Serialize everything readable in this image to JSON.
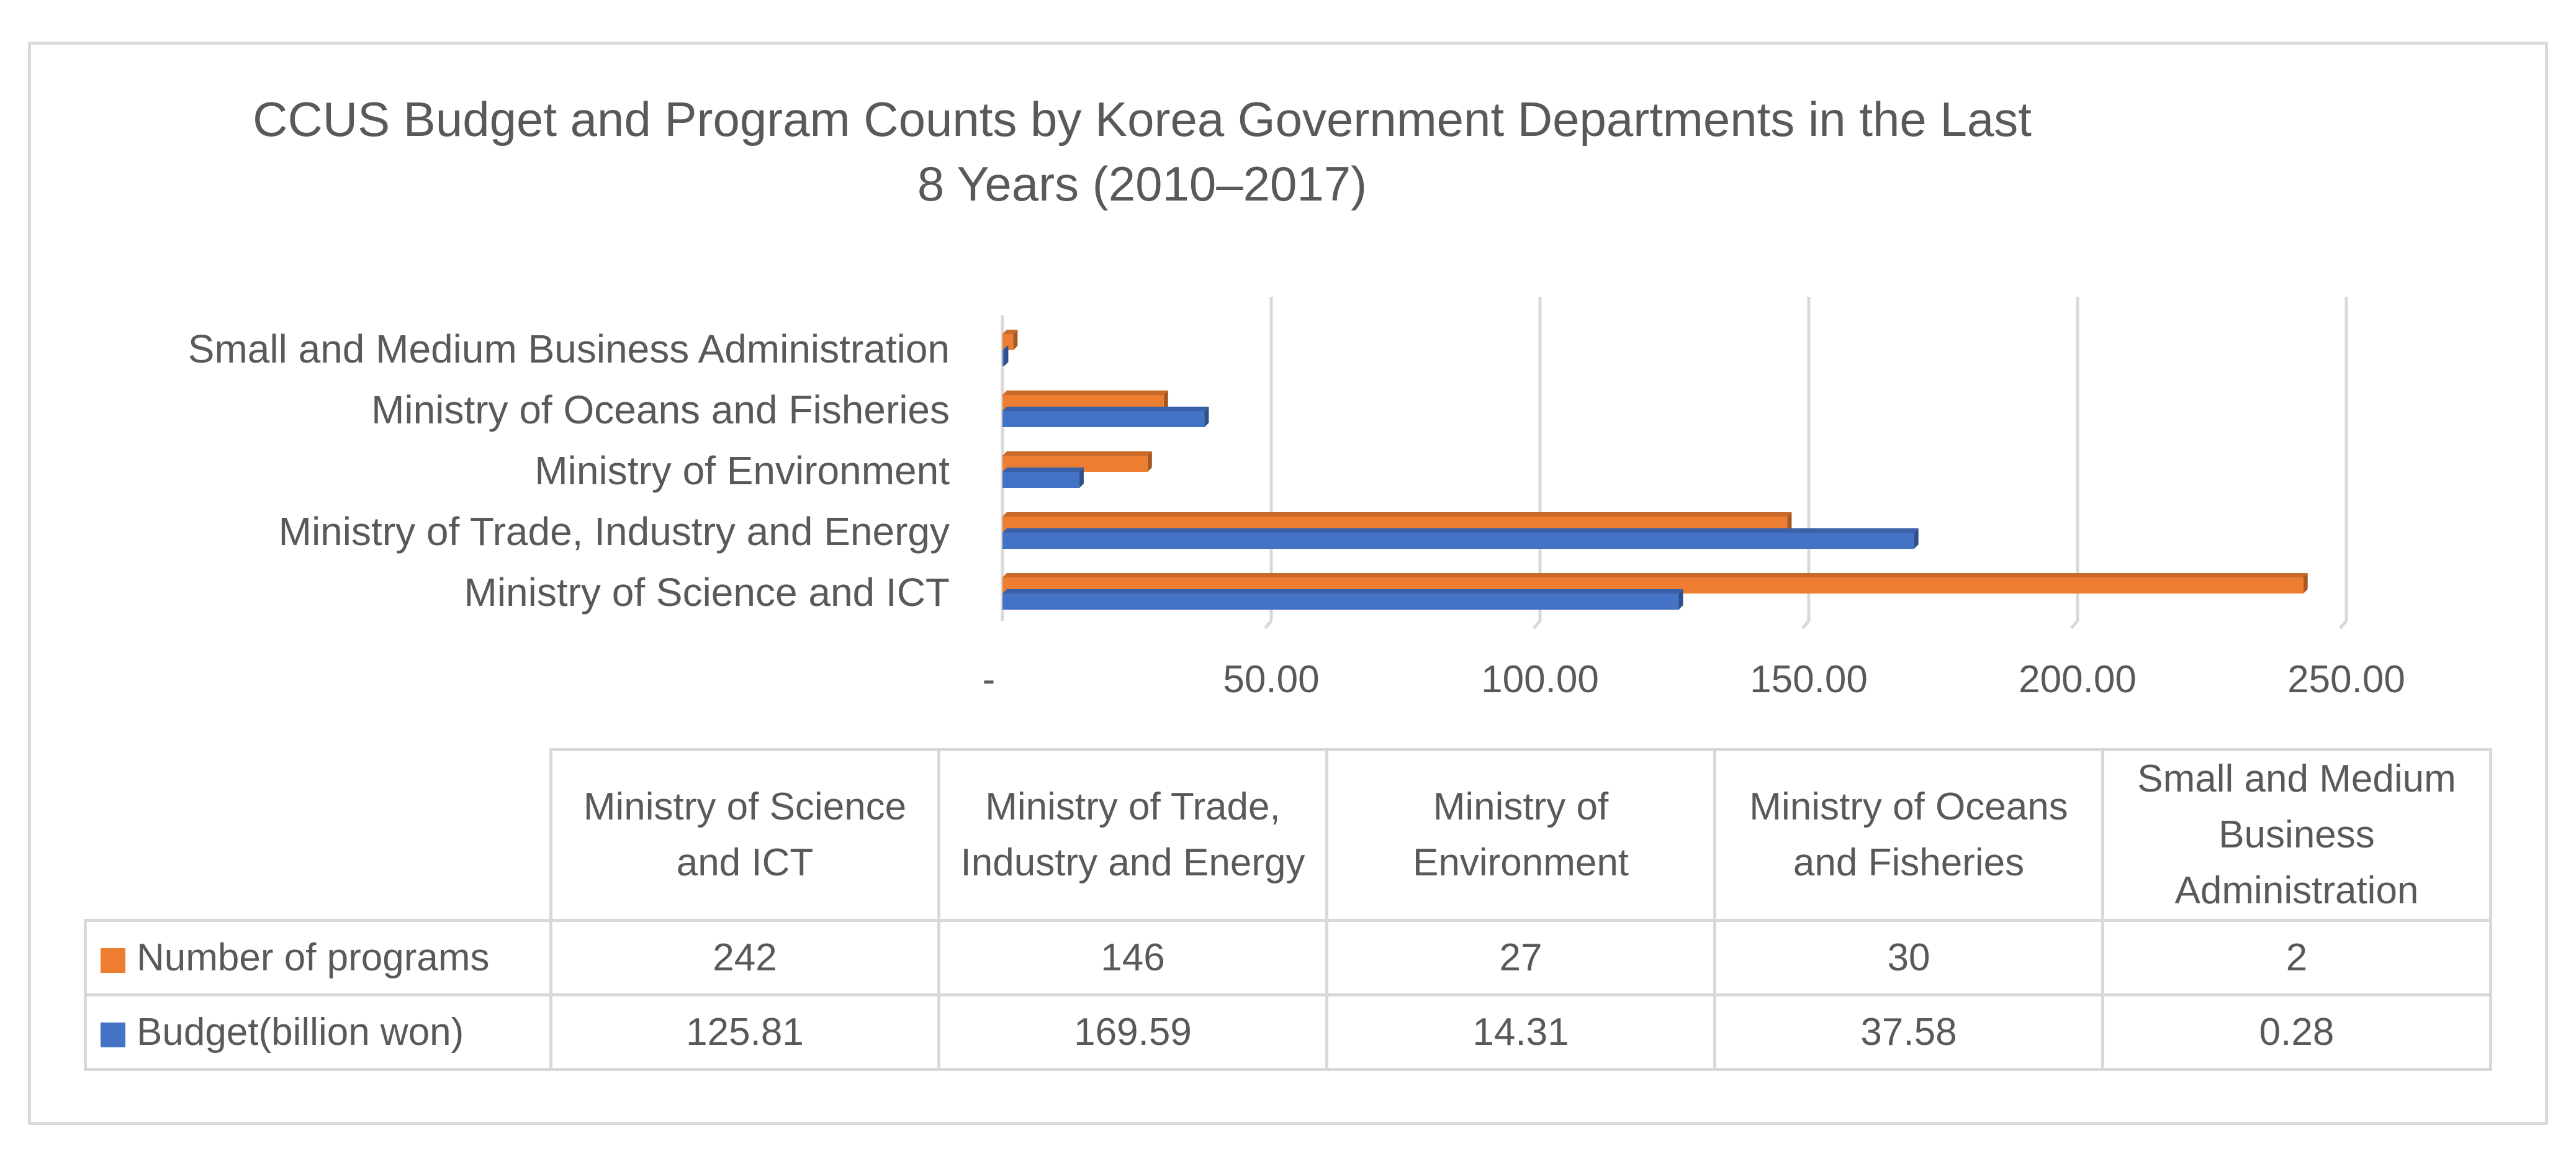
{
  "chart_data": {
    "type": "bar",
    "orientation": "horizontal",
    "title": "CCUS Budget and Program Counts by Korea Government Departments in the Last 8 Years (2010–2017)",
    "categories": [
      "Ministry of Science and ICT",
      "Ministry of Trade, Industry and Energy",
      "Ministry of Environment",
      "Ministry of Oceans and Fisheries",
      "Small and Medium Business Administration"
    ],
    "series": [
      {
        "name": "Number of programs",
        "values": [
          242,
          146,
          27,
          30,
          2
        ],
        "color": "#ed7d31"
      },
      {
        "name": "Budget(billion won)",
        "values": [
          125.81,
          169.59,
          14.31,
          37.58,
          0.28
        ],
        "color": "#4472c4"
      }
    ],
    "xlim": [
      0,
      250
    ],
    "x_ticks": [
      0,
      50,
      100,
      150,
      200,
      250
    ],
    "x_tick_labels": [
      "-",
      "50.00",
      "100.00",
      "150.00",
      "200.00",
      "250.00"
    ],
    "grid": true,
    "legend": "data-table"
  },
  "table": {
    "headers": [
      "Ministry of Science and ICT",
      "Ministry of Trade, Industry and Energy",
      "Ministry of Environment",
      "Ministry of Oceans and Fisheries",
      "Small and Medium Business Administration"
    ],
    "rows": [
      {
        "label": "Number of programs",
        "values": [
          "242",
          "146",
          "27",
          "30",
          "2"
        ]
      },
      {
        "label": "Budget(billion won)",
        "values": [
          "125.81",
          "169.59",
          "14.31",
          "37.58",
          "0.28"
        ]
      }
    ]
  }
}
